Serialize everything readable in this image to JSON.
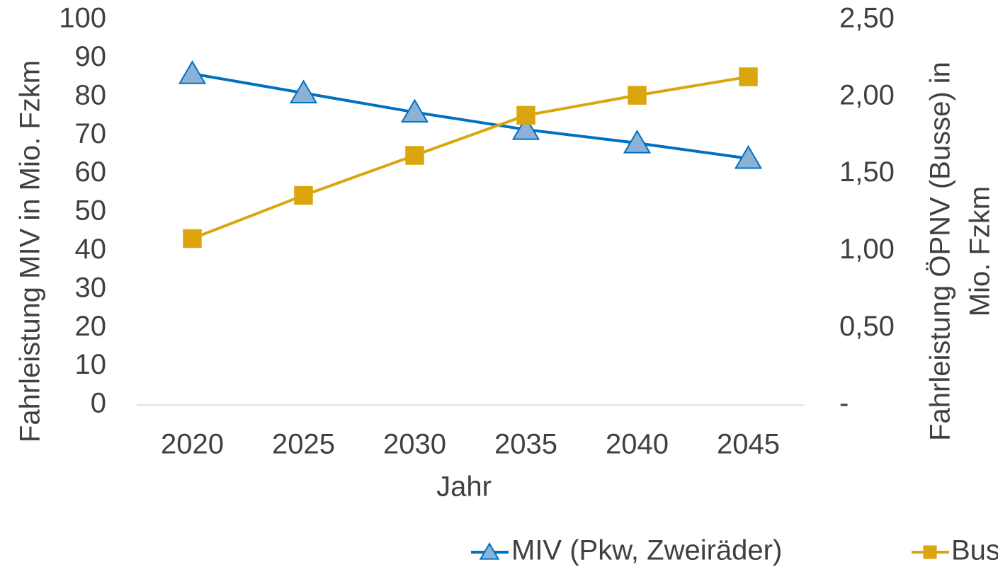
{
  "chart_data": {
    "type": "line",
    "categories": [
      "2020",
      "2025",
      "2030",
      "2035",
      "2040",
      "2045"
    ],
    "x_label": "Jahr",
    "y_label": "Fahrleistung MIV in Mio. Fzkm",
    "y2_label": [
      "Fahrleistung ÖPNV (Busse) in",
      "Mio. Fzkm"
    ],
    "ylim": [
      0,
      100
    ],
    "yticks": [
      0,
      10,
      20,
      30,
      40,
      50,
      60,
      70,
      80,
      90,
      100
    ],
    "y2lim": [
      0,
      2.5
    ],
    "y2ticks": [
      {
        "value": 0,
        "label": "-"
      },
      {
        "value": 0.5,
        "label": "0,50"
      },
      {
        "value": 1,
        "label": "1,00"
      },
      {
        "value": 1.5,
        "label": "1,50"
      },
      {
        "value": 2,
        "label": "2,00"
      },
      {
        "value": 2.5,
        "label": "2,50"
      }
    ],
    "grid": false,
    "legend": "bottom-right",
    "series": [
      {
        "name": "MIV (Pkw, Zweiräder)",
        "color": "#0070c0",
        "marker": "triangle",
        "marker_fill": "#8bb2d6",
        "values": [
          86,
          81,
          76,
          71.5,
          68,
          64
        ]
      },
      {
        "name": "Bus",
        "color": "#dba50d",
        "marker": "square",
        "marker_fill": "#dba50d",
        "axis": "y2",
        "values": [
          1.08,
          1.36,
          1.62,
          1.88,
          2.01,
          2.13
        ]
      }
    ]
  }
}
